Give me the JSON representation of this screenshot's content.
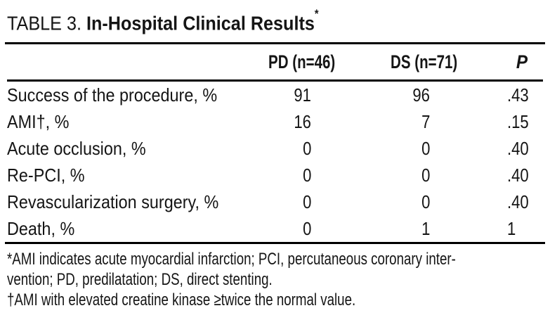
{
  "title": {
    "prefix": "TABLE 3. ",
    "main": "In-Hospital Clinical Results",
    "footnote_marker": "*"
  },
  "table": {
    "headers": {
      "label": "",
      "pd": "PD (n=46)",
      "ds": "DS (n=71)",
      "p": "P"
    },
    "rows": [
      {
        "label": "Success of the procedure, %",
        "pd": "91",
        "ds": "96",
        "p": ".43"
      },
      {
        "label": "AMI†, %",
        "pd": "16",
        "ds": "7",
        "p": ".15"
      },
      {
        "label": "Acute occlusion, %",
        "pd": "0",
        "ds": "0",
        "p": ".40"
      },
      {
        "label": "Re-PCI, %",
        "pd": "0",
        "ds": "0",
        "p": ".40"
      },
      {
        "label": "Revascularization surgery, %",
        "pd": "0",
        "ds": "0",
        "p": ".40"
      },
      {
        "label": "Death, %",
        "pd": "0",
        "ds": "1",
        "p": "1"
      }
    ]
  },
  "footnotes": {
    "line1": "*AMI indicates acute myocardial infarction; PCI, percutaneous coronary inter-",
    "line2": "vention; PD, predilatation; DS, direct stenting.",
    "line3": "†AMI with elevated creatine kinase ≥twice the normal value."
  },
  "colors": {
    "background": "#ffffff",
    "text": "#151515",
    "rule": "#000000"
  }
}
